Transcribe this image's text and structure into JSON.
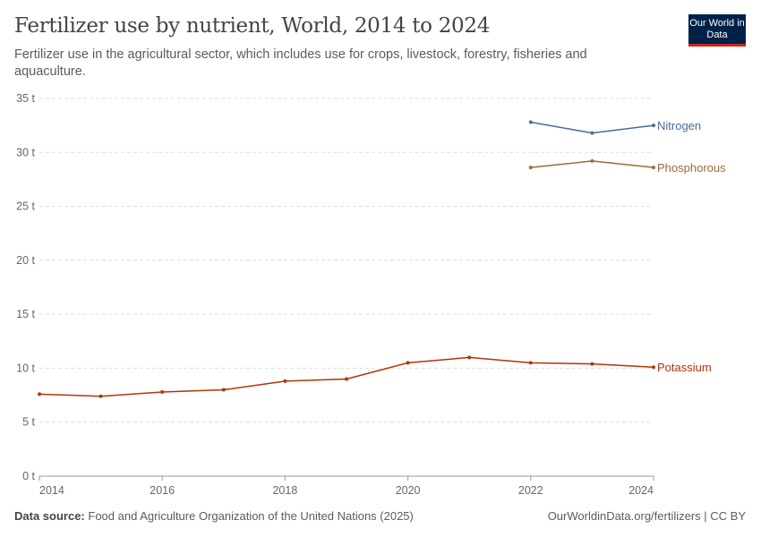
{
  "title": "Fertilizer use by nutrient, World, 2014 to 2024",
  "subtitle": "Fertilizer use in the agricultural sector, which includes use for crops, livestock, forestry, fisheries and aquaculture.",
  "logo": "Our World in Data",
  "footer": {
    "source_label": "Data source:",
    "source": "Food and Agriculture Organization of the United Nations (2025)",
    "link": "OurWorldinData.org/fertilizers | CC BY"
  },
  "chart_data": {
    "type": "line",
    "title": "Fertilizer use by nutrient, World, 2014 to 2024",
    "x": [
      2014,
      2015,
      2016,
      2017,
      2018,
      2019,
      2020,
      2021,
      2022,
      2023,
      2024
    ],
    "xlim": [
      2014,
      2024
    ],
    "ylim": [
      0,
      35
    ],
    "x_ticks": [
      "2014",
      "2016",
      "2018",
      "2020",
      "2022",
      "2024"
    ],
    "y_ticks": [
      "0 t",
      "5 t",
      "10 t",
      "15 t",
      "20 t",
      "25 t",
      "30 t",
      "35 t"
    ],
    "grid": "horizontal dashed",
    "legend": "line-end labels",
    "series": [
      {
        "name": "Nitrogen",
        "color": "#4c6a9c",
        "values": [
          null,
          null,
          null,
          null,
          null,
          null,
          null,
          null,
          32.8,
          31.8,
          32.5
        ]
      },
      {
        "name": "Phosphorous",
        "color": "#996d39",
        "values": [
          null,
          null,
          null,
          null,
          null,
          null,
          null,
          null,
          28.6,
          29.2,
          28.6
        ]
      },
      {
        "name": "Potassium",
        "color": "#b13507",
        "values": [
          7.6,
          7.4,
          7.8,
          8.0,
          8.8,
          9.0,
          10.5,
          11.0,
          10.5,
          10.4,
          10.1
        ]
      }
    ]
  }
}
